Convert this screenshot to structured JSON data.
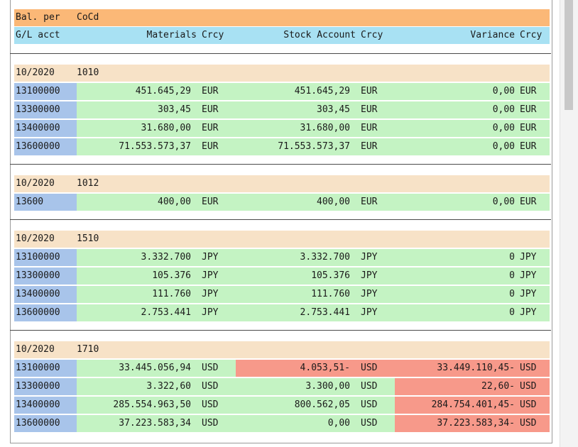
{
  "header": {
    "row1": {
      "bal_per": "Bal. per",
      "cocd": "CoCd"
    },
    "row2": {
      "gl_acct": "G/L acct",
      "materials": "Materials",
      "crcy1": "Crcy",
      "stock_account": "Stock Account",
      "crcy2": "Crcy",
      "variance": "Variance",
      "crcy3": "Crcy"
    }
  },
  "groups": [
    {
      "period": "10/2020",
      "cocd": "1010",
      "rows": [
        {
          "acct": "13100000",
          "materials": "451.645,29",
          "crcy1": "EUR",
          "stock": "451.645,29",
          "crcy2": "EUR",
          "variance": "0,00",
          "crcy3": "EUR"
        },
        {
          "acct": "13300000",
          "materials": "303,45",
          "crcy1": "EUR",
          "stock": "303,45",
          "crcy2": "EUR",
          "variance": "0,00",
          "crcy3": "EUR"
        },
        {
          "acct": "13400000",
          "materials": "31.680,00",
          "crcy1": "EUR",
          "stock": "31.680,00",
          "crcy2": "EUR",
          "variance": "0,00",
          "crcy3": "EUR"
        },
        {
          "acct": "13600000",
          "materials": "71.553.573,37",
          "crcy1": "EUR",
          "stock": "71.553.573,37",
          "crcy2": "EUR",
          "variance": "0,00",
          "crcy3": "EUR"
        }
      ]
    },
    {
      "period": "10/2020",
      "cocd": "1012",
      "rows": [
        {
          "acct": "13600",
          "materials": "400,00",
          "crcy1": "EUR",
          "stock": "400,00",
          "crcy2": "EUR",
          "variance": "0,00",
          "crcy3": "EUR"
        }
      ]
    },
    {
      "period": "10/2020",
      "cocd": "1510",
      "rows": [
        {
          "acct": "13100000",
          "materials": "3.332.700",
          "crcy1": "JPY",
          "stock": "3.332.700",
          "crcy2": "JPY",
          "variance": "0",
          "crcy3": "JPY"
        },
        {
          "acct": "13300000",
          "materials": "105.376",
          "crcy1": "JPY",
          "stock": "105.376",
          "crcy2": "JPY",
          "variance": "0",
          "crcy3": "JPY"
        },
        {
          "acct": "13400000",
          "materials": "111.760",
          "crcy1": "JPY",
          "stock": "111.760",
          "crcy2": "JPY",
          "variance": "0",
          "crcy3": "JPY"
        },
        {
          "acct": "13600000",
          "materials": "2.753.441",
          "crcy1": "JPY",
          "stock": "2.753.441",
          "crcy2": "JPY",
          "variance": "0",
          "crcy3": "JPY"
        }
      ]
    },
    {
      "period": "10/2020",
      "cocd": "1710",
      "rows": [
        {
          "acct": "13100000",
          "materials": "33.445.056,94",
          "crcy1": "USD",
          "stock": "4.053,51-",
          "crcy2": "USD",
          "variance": "33.449.110,45-",
          "crcy3": "USD",
          "stock_flag": "red",
          "variance_flag": "red"
        },
        {
          "acct": "13300000",
          "materials": "3.322,60",
          "crcy1": "USD",
          "stock": "3.300,00",
          "crcy2": "USD",
          "variance": "22,60-",
          "crcy3": "USD",
          "stock_flag": "green",
          "variance_flag": "red"
        },
        {
          "acct": "13400000",
          "materials": "285.554.963,50",
          "crcy1": "USD",
          "stock": "800.562,05",
          "crcy2": "USD",
          "variance": "284.754.401,45-",
          "crcy3": "USD",
          "stock_flag": "green",
          "variance_flag": "red"
        },
        {
          "acct": "13600000",
          "materials": "37.223.583,34",
          "crcy1": "USD",
          "stock": "0,00",
          "crcy2": "USD",
          "variance": "37.223.583,34-",
          "crcy3": "USD",
          "stock_flag": "green",
          "variance_flag": "red"
        }
      ]
    }
  ],
  "colors": {
    "header_orange": "#fbb877",
    "header_blue": "#a8e1f3",
    "period_bg": "#f7e2c7",
    "account_bg": "#a8c4ea",
    "ok_green": "#c4f3c3",
    "variance_red": "#f7998a"
  }
}
